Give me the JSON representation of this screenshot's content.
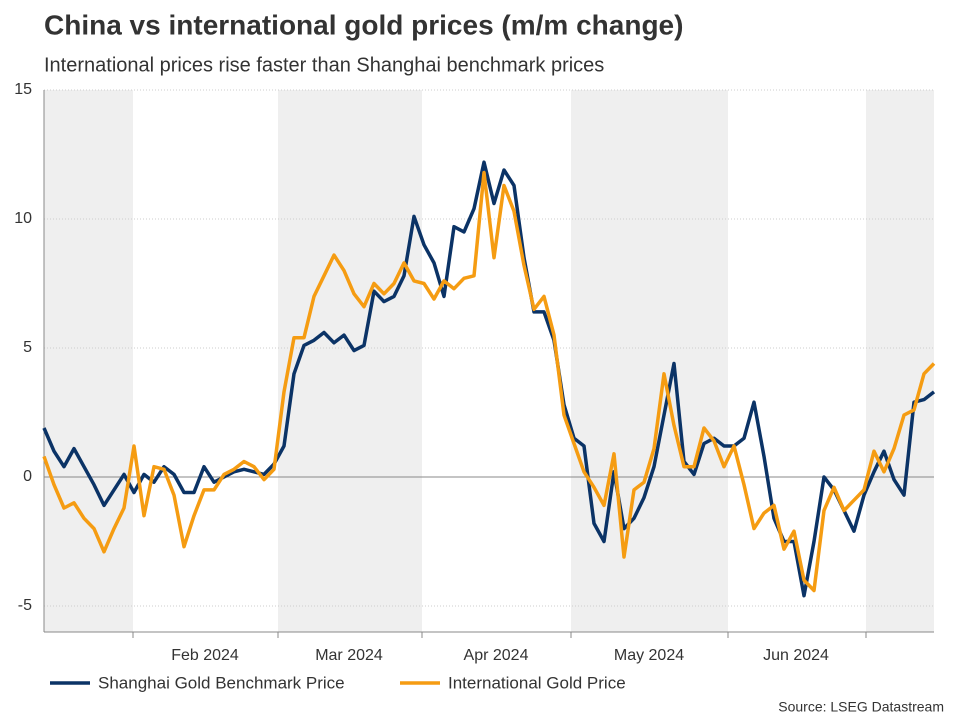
{
  "chart_data": {
    "type": "line",
    "title": "China vs international gold prices (m/m change)",
    "subtitle": "International prices rise faster than Shanghai benchmark prices",
    "source": "Source: LSEG Datastream",
    "xlim": [
      0,
      89
    ],
    "xticks": [
      {
        "value": 16.1,
        "label": "Feb 2024"
      },
      {
        "value": 30.5,
        "label": "Mar 2024"
      },
      {
        "value": 45.2,
        "label": "Apr 2024"
      },
      {
        "value": 60.5,
        "label": "May 2024"
      },
      {
        "value": 75.2,
        "label": "Jun 2024"
      }
    ],
    "month_starts": [
      8.9,
      23.4,
      37.8,
      52.7,
      68.4,
      82.2
    ],
    "shaded_bands": [
      [
        0,
        8.9
      ],
      [
        23.4,
        37.8
      ],
      [
        52.7,
        68.4
      ],
      [
        82.2,
        89
      ]
    ],
    "ylim": [
      -5,
      15
    ],
    "yticks": [
      -5,
      0,
      5,
      10,
      15
    ],
    "grid": true,
    "series": [
      {
        "name": "Shanghai Gold Benchmark Price",
        "color": "#0b3366",
        "values": [
          1.9,
          1.0,
          0.4,
          1.1,
          0.4,
          -0.3,
          -1.1,
          -0.5,
          0.1,
          -0.6,
          0.1,
          -0.2,
          0.4,
          0.1,
          -0.6,
          -0.6,
          0.4,
          -0.2,
          0.0,
          0.2,
          0.3,
          0.2,
          0.1,
          0.5,
          1.2,
          4.0,
          5.1,
          5.3,
          5.6,
          5.2,
          5.5,
          4.9,
          5.1,
          7.2,
          6.8,
          7.0,
          7.8,
          10.1,
          9.0,
          8.3,
          7.0,
          9.7,
          9.5,
          10.4,
          12.2,
          10.6,
          11.9,
          11.3,
          8.5,
          6.4,
          6.4,
          5.3,
          2.8,
          1.5,
          1.2,
          -1.8,
          -2.5,
          0.2,
          -2.0,
          -1.6,
          -0.8,
          0.4,
          2.4,
          4.4,
          0.6,
          0.1,
          1.3,
          1.5,
          1.2,
          1.2,
          1.5,
          2.9,
          0.8,
          -1.6,
          -2.5,
          -2.5,
          -4.6,
          -2.5,
          0.0,
          -0.5,
          -1.3,
          -2.1,
          -0.7,
          0.2,
          1.0,
          -0.1,
          -0.7,
          2.9,
          3.0,
          3.3
        ]
      },
      {
        "name": "International Gold Price",
        "color": "#f59c12",
        "values": [
          0.8,
          -0.3,
          -1.2,
          -1.0,
          -1.6,
          -2.0,
          -2.9,
          -2.0,
          -1.2,
          1.2,
          -1.5,
          0.4,
          0.3,
          -0.7,
          -2.7,
          -1.5,
          -0.5,
          -0.5,
          0.1,
          0.3,
          0.6,
          0.4,
          -0.1,
          0.3,
          3.3,
          5.4,
          5.4,
          7.0,
          7.8,
          8.6,
          8.0,
          7.1,
          6.6,
          7.5,
          7.1,
          7.5,
          8.3,
          7.6,
          7.5,
          6.9,
          7.6,
          7.3,
          7.7,
          7.8,
          11.8,
          8.5,
          11.3,
          10.3,
          8.2,
          6.5,
          7.0,
          5.5,
          2.4,
          1.3,
          0.2,
          -0.4,
          -1.1,
          0.9,
          -3.1,
          -0.5,
          -0.2,
          1.1,
          4.0,
          2.0,
          0.4,
          0.4,
          1.9,
          1.4,
          0.4,
          1.2,
          -0.3,
          -2.0,
          -1.4,
          -1.1,
          -2.8,
          -2.1,
          -4.0,
          -4.4,
          -1.3,
          -0.4,
          -1.3,
          -0.9,
          -0.5,
          1.0,
          0.2,
          1.1,
          2.4,
          2.6,
          4.0,
          4.4
        ]
      }
    ]
  }
}
